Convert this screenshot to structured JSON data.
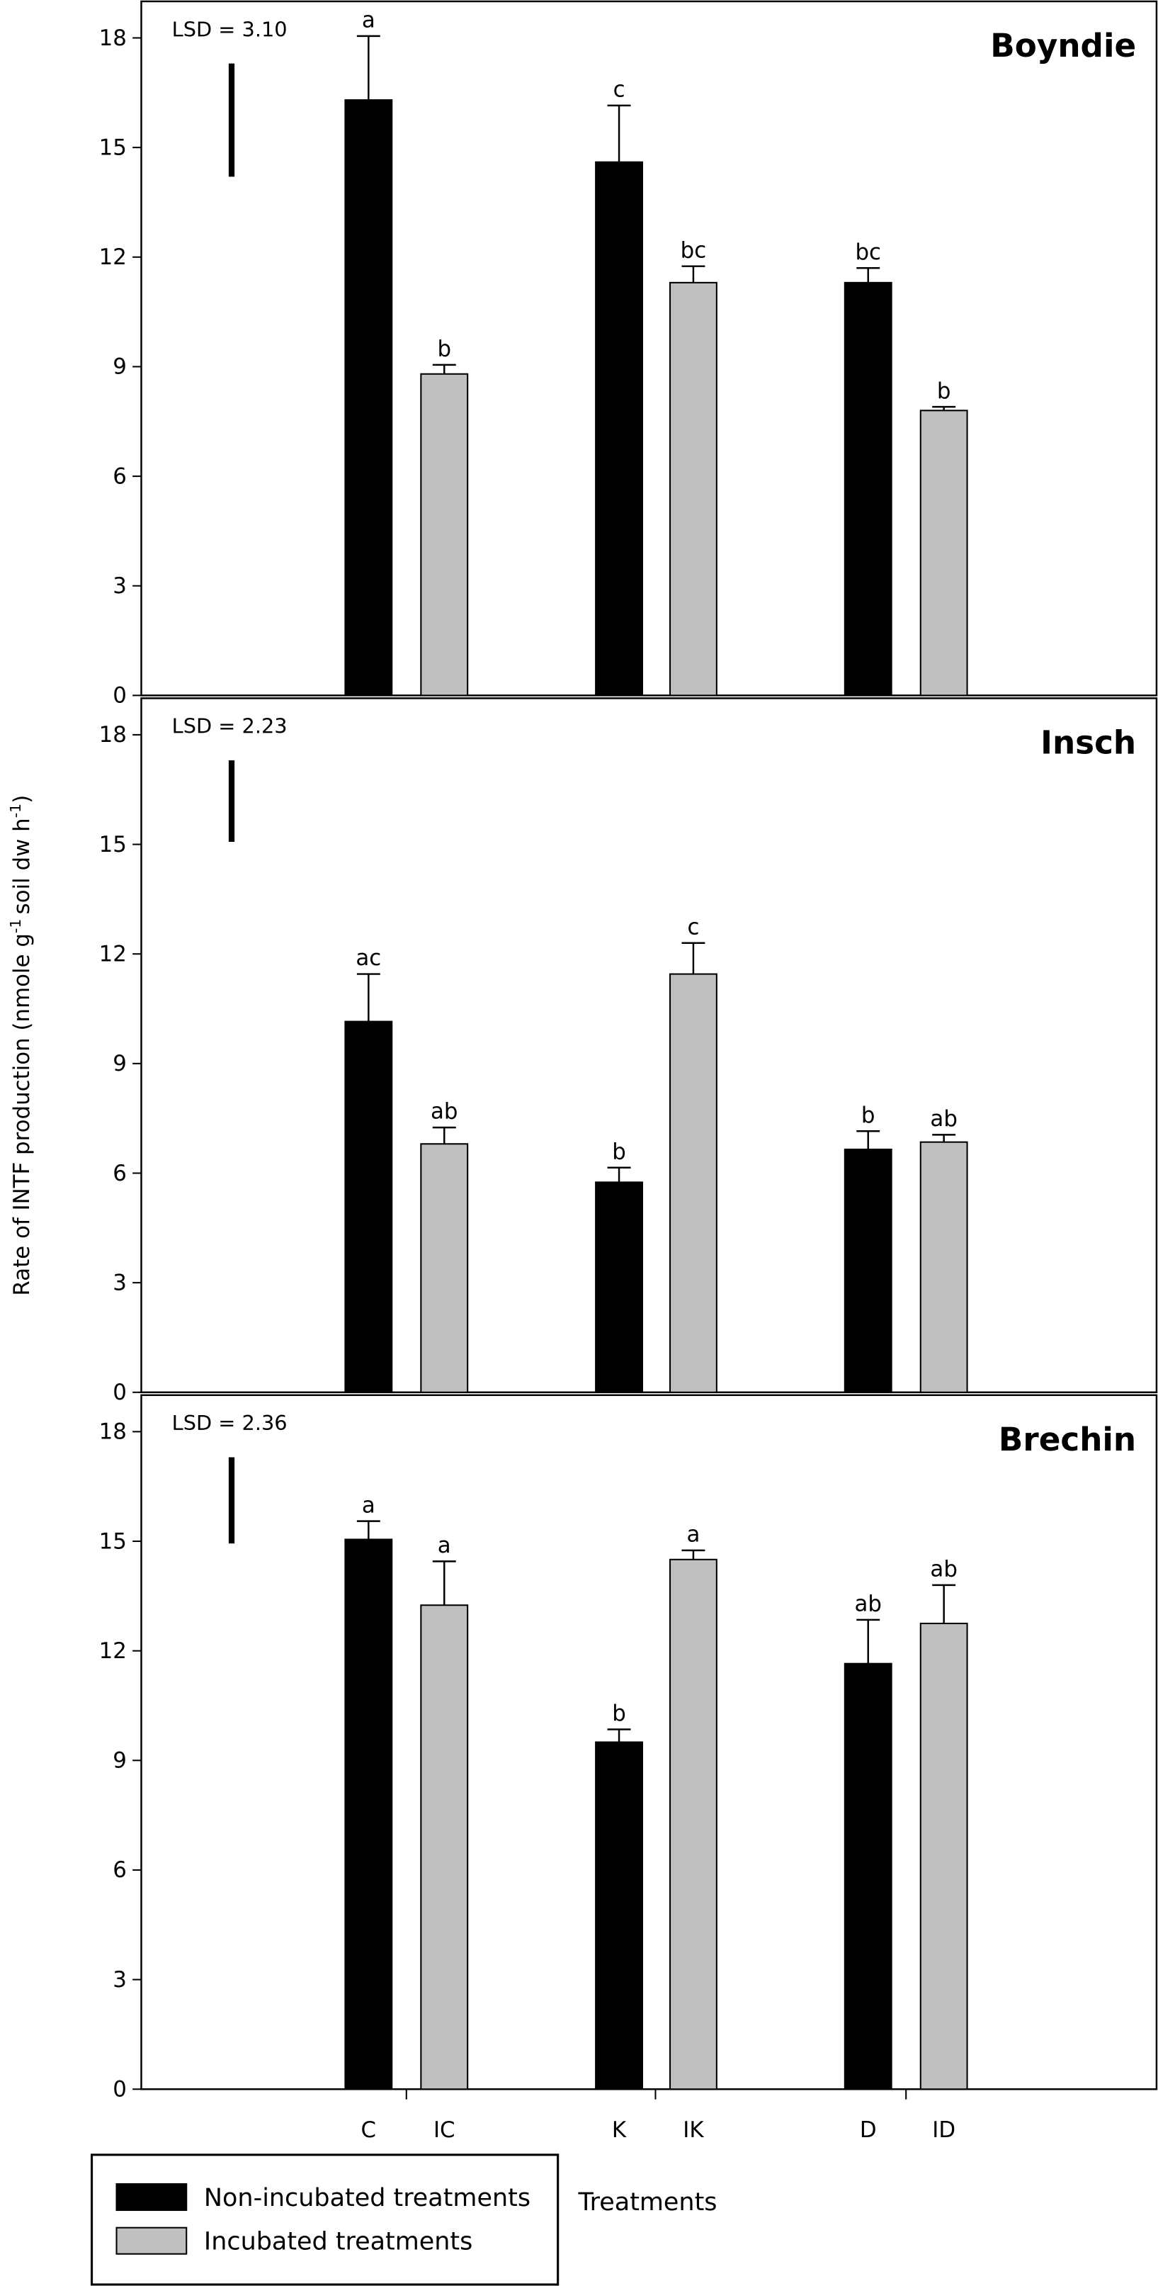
{
  "chart_data": {
    "type": "bar",
    "ylabel": [
      "Rate of INTF production (nmole g",
      "-1",
      "soil dw h",
      "-1",
      ")"
    ],
    "xlabel": "Treatments",
    "categories": [
      "C",
      "IC",
      "K",
      "IK",
      "D",
      "ID"
    ],
    "series": [
      {
        "name": "Non-incubated treatments",
        "color": "#000000"
      },
      {
        "name": "Incubated treatments",
        "color": "#c0c0c0"
      }
    ],
    "ylim": [
      0,
      19
    ],
    "yticks": [
      0,
      3,
      6,
      9,
      12,
      15,
      18
    ],
    "panels": [
      {
        "title": "Boyndie",
        "lsd_label": "LSD = 3.10",
        "lsd": 3.1,
        "values": [
          [
            16.3,
            null,
            14.6,
            null,
            11.3,
            null
          ],
          [
            null,
            8.8,
            null,
            11.3,
            null,
            7.8
          ]
        ],
        "errors": [
          [
            1.75,
            null,
            1.55,
            null,
            0.4,
            null
          ],
          [
            null,
            0.25,
            null,
            0.45,
            null,
            0.1
          ]
        ],
        "letters": [
          "a",
          "b",
          "c",
          "bc",
          "bc",
          "b"
        ]
      },
      {
        "title": "Insch",
        "lsd_label": "LSD = 2.23",
        "lsd": 2.23,
        "values": [
          [
            10.15,
            null,
            5.75,
            null,
            6.65,
            null
          ],
          [
            null,
            6.8,
            null,
            11.45,
            null,
            6.85
          ]
        ],
        "errors": [
          [
            1.3,
            null,
            0.4,
            null,
            0.5,
            null
          ],
          [
            null,
            0.45,
            null,
            0.85,
            null,
            0.2
          ]
        ],
        "letters": [
          "ac",
          "ab",
          "b",
          "c",
          "b",
          "ab"
        ]
      },
      {
        "title": "Brechin",
        "lsd_label": "LSD = 2.36",
        "lsd": 2.36,
        "values": [
          [
            15.05,
            null,
            9.5,
            null,
            11.65,
            null
          ],
          [
            null,
            13.25,
            null,
            14.5,
            null,
            12.75
          ]
        ],
        "errors": [
          [
            0.5,
            null,
            0.35,
            null,
            1.2,
            null
          ],
          [
            null,
            1.2,
            null,
            0.25,
            null,
            1.05
          ]
        ],
        "letters": [
          "a",
          "a",
          "b",
          "a",
          "ab",
          "ab"
        ]
      }
    ]
  }
}
